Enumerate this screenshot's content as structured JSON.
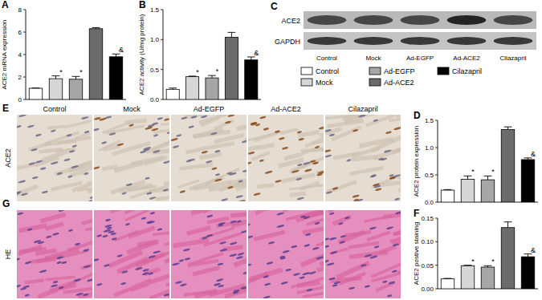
{
  "chart_data": [
    {
      "type": "bar",
      "panel": "A",
      "y_label": "ACE2 mRNA expression",
      "categories": [
        "Control",
        "Mock",
        "Ad-EGFP",
        "Ad-ACE2",
        "Cilazapril"
      ],
      "values": [
        1.0,
        1.85,
        1.8,
        6.3,
        3.8
      ],
      "errors": [
        0.02,
        0.25,
        0.25,
        0.1,
        0.25
      ],
      "annotations": [
        null,
        "*",
        "*",
        null,
        "&"
      ],
      "colors": [
        "#ffffff",
        "#d6d6d6",
        "#a6a6a6",
        "#6b6b6b",
        "#000000"
      ],
      "ylim": [
        0,
        8
      ],
      "yticks": [
        0,
        2,
        4,
        6,
        8
      ],
      "tick_labels": "y"
    },
    {
      "type": "bar",
      "panel": "B",
      "y_label": "ACE2 activity (U/mg protein)",
      "categories": [
        "Control",
        "Mock",
        "Ad-EGFP",
        "Ad-ACE2",
        "Cilazapril"
      ],
      "values": [
        0.17,
        0.38,
        0.36,
        1.04,
        0.66
      ],
      "errors": [
        0.02,
        0.01,
        0.04,
        0.08,
        0.05
      ],
      "annotations": [
        null,
        "*",
        "*",
        null,
        "&"
      ],
      "colors": [
        "#ffffff",
        "#d6d6d6",
        "#a6a6a6",
        "#6b6b6b",
        "#000000"
      ],
      "ylim": [
        0,
        1.5
      ],
      "yticks": [
        {
          "value": 0,
          "label": "0.0"
        },
        0.5,
        {
          "value": 1,
          "label": "1.0"
        },
        1.5
      ],
      "tick_labels": "y"
    },
    {
      "type": "bar",
      "panel": "D",
      "y_label": "ACE2 protein expression",
      "categories": [
        "Control",
        "Mock",
        "Ad-EGFP",
        "Ad-ACE2",
        "Cilazapril"
      ],
      "values": [
        0.22,
        0.42,
        0.41,
        1.33,
        0.78
      ],
      "errors": [
        0.01,
        0.06,
        0.07,
        0.05,
        0.03
      ],
      "annotations": [
        null,
        "*",
        "*",
        null,
        "&"
      ],
      "colors": [
        "#ffffff",
        "#d6d6d6",
        "#a6a6a6",
        "#6b6b6b",
        "#000000"
      ],
      "ylim": [
        0,
        1.5
      ],
      "yticks": [
        {
          "value": 0,
          "label": "0.0"
        },
        0.5,
        {
          "value": 1,
          "label": "1.0"
        },
        1.5
      ],
      "tick_labels": "y"
    },
    {
      "type": "bar",
      "panel": "F",
      "y_label": "ACE2 postive staining",
      "categories": [
        "Control",
        "Mock",
        "Ad-EGFP",
        "Ad-ACE2",
        "Cilazapril"
      ],
      "values": [
        0.021,
        0.049,
        0.046,
        0.13,
        0.068
      ],
      "errors": [
        0.001,
        0.001,
        0.003,
        0.012,
        0.006
      ],
      "annotations": [
        null,
        "*",
        "*",
        null,
        "&"
      ],
      "colors": [
        "#ffffff",
        "#d6d6d6",
        "#a6a6a6",
        "#6b6b6b",
        "#000000"
      ],
      "ylim": [
        0,
        0.15
      ],
      "yticks": [
        {
          "value": 0,
          "label": "0.00"
        },
        0.05,
        {
          "value": 0.1,
          "label": "0.10"
        },
        0.15
      ],
      "tick_labels": "y"
    }
  ],
  "blot": {
    "panel": "C",
    "rows": [
      "ACE2",
      "GAPDH"
    ],
    "lanes": [
      "Control",
      "Mock",
      "Ad-EGFP",
      "Ad-ACE2",
      "Cilazapril"
    ]
  },
  "histology": {
    "panels": [
      "E",
      "G"
    ],
    "rows": [
      "ACE2",
      "HE"
    ],
    "columns": [
      "Control",
      "Mock",
      "Ad-EGFP",
      "Ad-ACE2",
      "Cilazapril"
    ]
  }
}
